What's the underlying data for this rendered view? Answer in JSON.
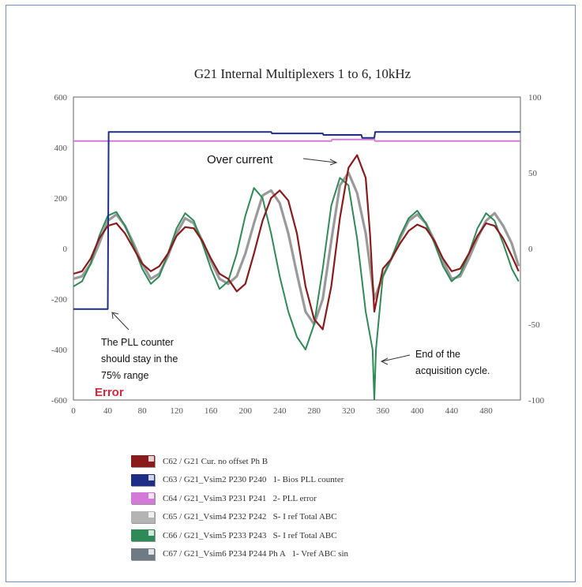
{
  "chart_data": {
    "type": "line",
    "title": "G21 Internal Multiplexers 1 to 6, 10kHz",
    "xlabel": "",
    "ylabel": "",
    "xlim": [
      0,
      520
    ],
    "ylim_left": [
      -600,
      600
    ],
    "ylim_right": [
      -100,
      100
    ],
    "x_ticks": [
      "0",
      "40",
      "80",
      "120",
      "160",
      "200",
      "240",
      "280",
      "320",
      "360",
      "400",
      "440",
      "480"
    ],
    "y_ticks_left": [
      "600",
      "400",
      "200",
      "0",
      "-200",
      "-400",
      "-600"
    ],
    "y_ticks_right": [
      "100",
      "50",
      "0",
      "-50",
      "-100"
    ],
    "grid": false,
    "legend_position": "bottom",
    "series": [
      {
        "name": "C62 / G21 Cur. no offset Ph B",
        "color": "#8b1a1a",
        "axis": "left",
        "x": [
          0,
          10,
          20,
          30,
          40,
          50,
          60,
          70,
          80,
          90,
          100,
          110,
          120,
          130,
          140,
          150,
          160,
          170,
          180,
          190,
          200,
          210,
          220,
          230,
          240,
          250,
          260,
          270,
          280,
          290,
          300,
          310,
          320,
          330,
          340,
          345,
          350,
          360,
          370,
          380,
          390,
          400,
          410,
          420,
          430,
          440,
          450,
          460,
          470,
          480,
          490,
          500,
          510,
          518
        ],
        "values": [
          -100,
          -90,
          -40,
          40,
          90,
          100,
          60,
          0,
          -60,
          -90,
          -70,
          -20,
          50,
          85,
          80,
          30,
          -40,
          -100,
          -120,
          -170,
          -140,
          -20,
          110,
          200,
          230,
          190,
          60,
          -150,
          -280,
          -320,
          -150,
          120,
          320,
          370,
          280,
          60,
          -250,
          -80,
          -40,
          20,
          70,
          95,
          80,
          30,
          -40,
          -90,
          -80,
          -20,
          50,
          100,
          90,
          40,
          -30,
          -90
        ]
      },
      {
        "name": "C63 / G21_Vsim2 P230 P240  1- Bios PLL counter",
        "color": "#1f2d86",
        "axis": "right",
        "x": [
          0,
          38,
          40,
          41,
          230,
          231,
          290,
          291,
          335,
          336,
          350,
          351,
          525,
          526,
          530
        ],
        "values": [
          -40,
          -40,
          -40,
          77,
          77,
          76,
          76,
          75,
          75,
          73,
          73,
          77,
          77,
          -100,
          -100
        ]
      },
      {
        "name": "C64 / G21_Vsim3 P231 P241  2- PLL error",
        "color": "#d37ad8",
        "axis": "right",
        "x": [
          0,
          40,
          41,
          300,
          301,
          350,
          351,
          525,
          526,
          530
        ],
        "values": [
          71,
          71,
          71,
          71,
          72,
          72,
          71,
          71,
          -100,
          -100
        ]
      },
      {
        "name": "C65 / G21_Vsim4 P232 P242  S- I ref Total ABC",
        "color": "#9a9a9a",
        "axis": "left",
        "x": [
          0,
          10,
          20,
          30,
          40,
          50,
          60,
          70,
          80,
          90,
          100,
          110,
          120,
          130,
          140,
          150,
          160,
          170,
          180,
          190,
          200,
          210,
          220,
          230,
          240,
          250,
          260,
          270,
          280,
          290,
          300,
          310,
          320,
          330,
          340,
          350,
          360,
          370,
          380,
          390,
          400,
          410,
          420,
          430,
          440,
          450,
          460,
          470,
          480,
          490,
          500,
          510,
          518
        ],
        "values": [
          -120,
          -110,
          -60,
          20,
          110,
          135,
          90,
          20,
          -60,
          -120,
          -100,
          -30,
          60,
          120,
          100,
          30,
          -50,
          -120,
          -140,
          -110,
          -20,
          100,
          210,
          230,
          180,
          60,
          -100,
          -250,
          -300,
          -200,
          30,
          250,
          300,
          220,
          60,
          -200,
          -110,
          -40,
          40,
          110,
          135,
          100,
          30,
          -50,
          -120,
          -110,
          -40,
          40,
          110,
          140,
          90,
          20,
          -70
        ]
      },
      {
        "name": "C66 / G21_Vsim5 P233 P243  S- I ref Total ABC",
        "color": "#2e8b57",
        "axis": "left",
        "x": [
          0,
          10,
          20,
          30,
          40,
          50,
          60,
          70,
          80,
          90,
          100,
          110,
          120,
          130,
          140,
          150,
          160,
          170,
          180,
          190,
          200,
          210,
          220,
          230,
          240,
          250,
          260,
          270,
          280,
          290,
          300,
          310,
          320,
          330,
          340,
          348,
          350,
          352,
          360,
          370,
          380,
          390,
          400,
          410,
          420,
          430,
          440,
          450,
          460,
          470,
          480,
          490,
          500,
          510,
          518
        ],
        "values": [
          -150,
          -130,
          -60,
          50,
          130,
          145,
          90,
          10,
          -80,
          -140,
          -110,
          -20,
          80,
          140,
          110,
          20,
          -80,
          -160,
          -130,
          -20,
          130,
          240,
          200,
          60,
          -110,
          -250,
          -350,
          -400,
          -300,
          -80,
          170,
          280,
          250,
          40,
          -250,
          -400,
          -600,
          -400,
          -110,
          -40,
          50,
          120,
          150,
          100,
          20,
          -70,
          -130,
          -100,
          -20,
          80,
          140,
          110,
          20,
          -80,
          -130
        ]
      },
      {
        "name": "C67 / G21_Vsim6 P234 P244 Ph A  1- Vref ABC sin",
        "color": "#707a85",
        "axis": "left",
        "values": []
      }
    ],
    "annotations": [
      "Over current",
      "The PLL counter\nshould stay in the\n75% range",
      "Error",
      "End of the\nacquisition cycle."
    ]
  },
  "annotations": {
    "over_current": "Over current",
    "pll_line1": "The PLL counter",
    "pll_line2": "should stay in the",
    "pll_line3": "75% range",
    "error": "Error",
    "end_line1": "End of the",
    "end_line2": "acquisition cycle."
  },
  "legend": [
    {
      "label": "C62 / G21 Cur. no offset Ph B",
      "color": "#8b1a1a"
    },
    {
      "label": "C63 / G21_Vsim2 P230 P240   1- Bios PLL counter",
      "color": "#1f2d86"
    },
    {
      "label": "C64 / G21_Vsim3 P231 P241   2- PLL error",
      "color": "#d37ad8"
    },
    {
      "label": "C65 / G21_Vsim4 P232 P242   S- I ref Total ABC",
      "color": "#b4b4b4"
    },
    {
      "label": "C66 / G21_Vsim5 P233 P243   S- I ref Total ABC",
      "color": "#2e8b57"
    },
    {
      "label": "C67 / G21_Vsim6 P234 P244 Ph A   1- Vref ABC sin",
      "color": "#707a85"
    }
  ]
}
